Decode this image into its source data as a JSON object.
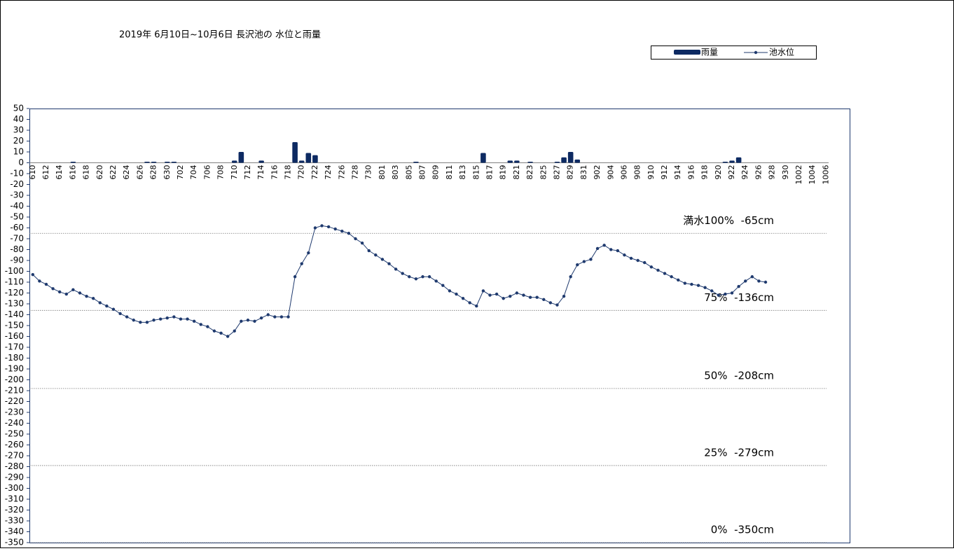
{
  "chart_data": {
    "type": "combo",
    "title": "2019年 6月10日~10月6日 長沢池の 水位と雨量",
    "categories": [
      "610",
      null,
      "612",
      null,
      "614",
      null,
      "616",
      null,
      "618",
      null,
      "620",
      null,
      "622",
      null,
      "624",
      null,
      "626",
      null,
      "628",
      null,
      "630",
      null,
      "702",
      null,
      "704",
      null,
      "706",
      null,
      "708",
      null,
      "710",
      null,
      "712",
      null,
      "714",
      null,
      "716",
      null,
      "718",
      null,
      "720",
      null,
      "722",
      null,
      "724",
      null,
      "726",
      null,
      "728",
      null,
      "730",
      null,
      "801",
      null,
      "803",
      null,
      "805",
      null,
      "807",
      null,
      "809",
      null,
      "811",
      null,
      "813",
      null,
      "815",
      null,
      "817",
      null,
      "819",
      null,
      "821",
      null,
      "823",
      null,
      "825",
      null,
      "827",
      null,
      "829",
      null,
      "831",
      null,
      "902",
      null,
      "904",
      null,
      "906",
      null,
      "908",
      null,
      "910",
      null,
      "912",
      null,
      "914",
      null,
      "916",
      null,
      "918",
      null,
      "920",
      null,
      "922",
      null,
      "924",
      null,
      "926",
      null,
      "928",
      null,
      "930",
      null,
      "1002",
      null,
      "1004",
      null,
      "1006",
      null,
      null,
      null
    ],
    "series": [
      {
        "name": "雨量",
        "kind": "bar",
        "color": "#0d2a62",
        "values": [
          null,
          null,
          null,
          null,
          null,
          null,
          1,
          null,
          null,
          null,
          null,
          null,
          null,
          null,
          null,
          null,
          null,
          1,
          1,
          null,
          1,
          1,
          null,
          null,
          null,
          null,
          null,
          null,
          null,
          null,
          2,
          10,
          null,
          null,
          2,
          null,
          null,
          null,
          null,
          19,
          2,
          9,
          7,
          null,
          null,
          null,
          null,
          null,
          null,
          null,
          null,
          null,
          null,
          null,
          null,
          null,
          null,
          1,
          null,
          null,
          null,
          null,
          null,
          null,
          null,
          null,
          null,
          9,
          null,
          null,
          null,
          2,
          2,
          null,
          1,
          null,
          null,
          null,
          1,
          5,
          10,
          3,
          null,
          null,
          null,
          null,
          null,
          null,
          null,
          null,
          null,
          null,
          null,
          null,
          null,
          null,
          null,
          null,
          null,
          null,
          null,
          null,
          null,
          1,
          2,
          5,
          null,
          null,
          null,
          null,
          null,
          null,
          null,
          null,
          null,
          null,
          null,
          null,
          null,
          null,
          null,
          null
        ]
      },
      {
        "name": "池水位",
        "kind": "line",
        "color": "#1f3a6e",
        "values": [
          -103,
          -109,
          -112,
          -116,
          -119,
          -121,
          -117,
          -120,
          -123,
          -125,
          -129,
          -132,
          -135,
          -139,
          -142,
          -145,
          -147,
          -147,
          -145,
          -144,
          -143,
          -142,
          -144,
          -144,
          -146,
          -149,
          -151,
          -155,
          -157,
          -160,
          -155,
          -146,
          -145,
          -146,
          -143,
          -140,
          -142,
          -142,
          -142,
          -105,
          -93,
          -83,
          -60,
          -58,
          -59,
          -61,
          -63,
          -65,
          -70,
          -74,
          -81,
          -85,
          -89,
          -93,
          -98,
          -102,
          -105,
          -107,
          -105,
          -105,
          -109,
          -113,
          -118,
          -121,
          -125,
          -129,
          -132,
          -118,
          -122,
          -121,
          -125,
          -123,
          -120,
          -122,
          -124,
          -124,
          -126,
          -129,
          -131,
          -123,
          -105,
          -94,
          -91,
          -89,
          -79,
          -76,
          -80,
          -81,
          -85,
          -88,
          -90,
          -92,
          -96,
          -99,
          -102,
          -105,
          -108,
          -111,
          -112,
          -113,
          -115,
          -118,
          -122,
          -121,
          -120,
          -114,
          -109,
          -105,
          -109,
          -110,
          null,
          null,
          null,
          null,
          null,
          null,
          null,
          null,
          null,
          null,
          null,
          null
        ]
      }
    ],
    "reference_lines": [
      {
        "value": -65,
        "label": "満水100%  -65cm"
      },
      {
        "value": -136,
        "label": "75%  -136cm"
      },
      {
        "value": -208,
        "label": "50%  -208cm"
      },
      {
        "value": -279,
        "label": "25%  -279cm"
      },
      {
        "value": -350,
        "label": "0%  -350cm"
      }
    ],
    "ylim": [
      -350,
      50
    ],
    "yticks": [
      50,
      40,
      30,
      20,
      10,
      0,
      -10,
      -20,
      -30,
      -40,
      -50,
      -60,
      -70,
      -80,
      -90,
      -100,
      -110,
      -120,
      -130,
      -140,
      -150,
      -160,
      -170,
      -180,
      -190,
      -200,
      -210,
      -220,
      -230,
      -240,
      -250,
      -260,
      -270,
      -280,
      -290,
      -300,
      -310,
      -320,
      -330,
      -340,
      -350
    ],
    "grid": false,
    "legend": "top-right"
  }
}
